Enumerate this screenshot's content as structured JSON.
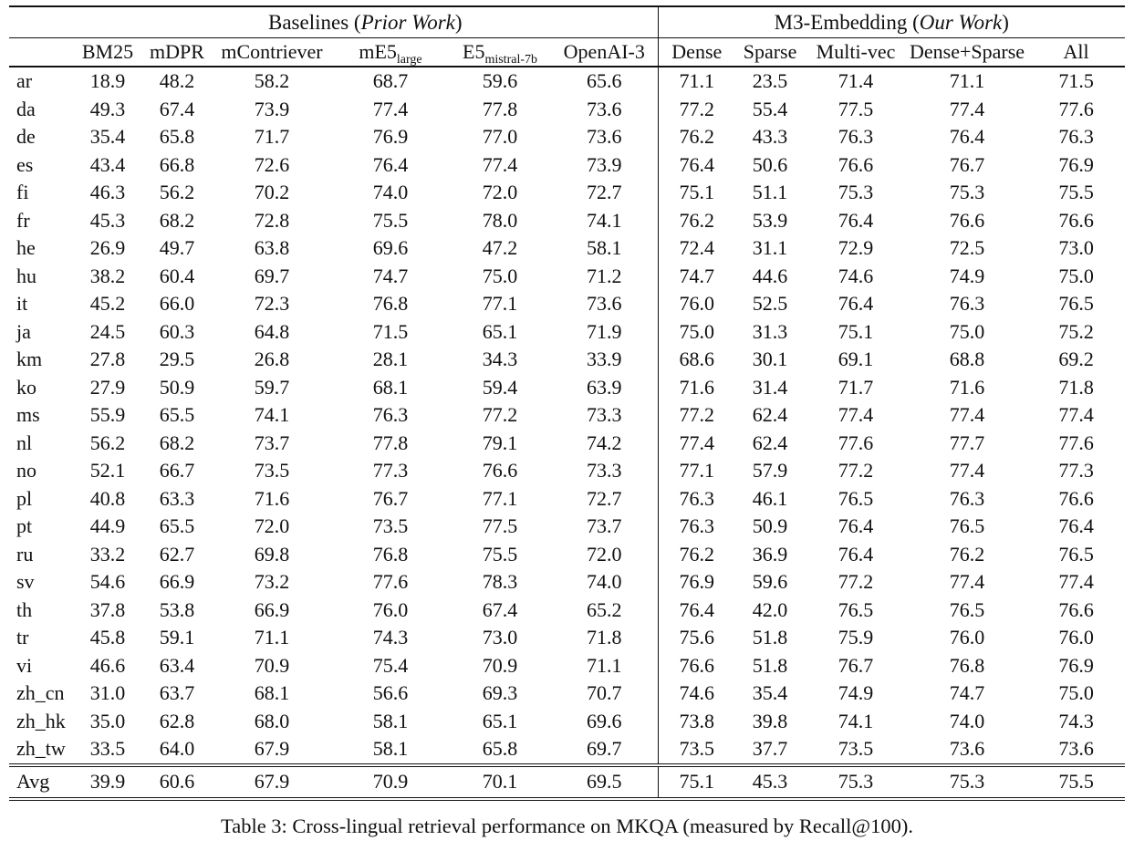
{
  "page": {
    "background_color": "#ffffff",
    "text_color": "#111111"
  },
  "table": {
    "group_headers": {
      "baselines": {
        "prefix": "Baselines (",
        "italic": "Prior Work",
        "suffix": ")"
      },
      "m3": {
        "prefix": "M3-Embedding (",
        "italic": "Our Work",
        "suffix": ")"
      }
    },
    "columns": [
      {
        "label": "BM25"
      },
      {
        "label": "mDPR"
      },
      {
        "label": "mContriever"
      },
      {
        "label": "mE5",
        "sub": "large"
      },
      {
        "label": "E5",
        "sub": "mistral-7b"
      },
      {
        "label": "OpenAI-3"
      },
      {
        "label": "Dense"
      },
      {
        "label": "Sparse"
      },
      {
        "label": "Multi-vec"
      },
      {
        "label": "Dense+Sparse"
      },
      {
        "label": "All"
      }
    ],
    "rows": [
      {
        "lang": "ar",
        "values": [
          "18.9",
          "48.2",
          "58.2",
          "68.7",
          "59.6",
          "65.6",
          "71.1",
          "23.5",
          "71.4",
          "71.1",
          "71.5"
        ],
        "bold": [
          10
        ]
      },
      {
        "lang": "da",
        "values": [
          "49.3",
          "67.4",
          "73.9",
          "77.4",
          "77.8",
          "73.6",
          "77.2",
          "55.4",
          "77.5",
          "77.4",
          "77.6"
        ],
        "bold": [
          4
        ]
      },
      {
        "lang": "de",
        "values": [
          "35.4",
          "65.8",
          "71.7",
          "76.9",
          "77.0",
          "73.6",
          "76.2",
          "43.3",
          "76.3",
          "76.4",
          "76.3"
        ],
        "bold": [
          4
        ]
      },
      {
        "lang": "es",
        "values": [
          "43.4",
          "66.8",
          "72.6",
          "76.4",
          "77.4",
          "73.9",
          "76.4",
          "50.6",
          "76.6",
          "76.7",
          "76.9"
        ],
        "bold": [
          4
        ]
      },
      {
        "lang": "fi",
        "values": [
          "46.3",
          "56.2",
          "70.2",
          "74.0",
          "72.0",
          "72.7",
          "75.1",
          "51.1",
          "75.3",
          "75.3",
          "75.5"
        ],
        "bold": [
          10
        ]
      },
      {
        "lang": "fr",
        "values": [
          "45.3",
          "68.2",
          "72.8",
          "75.5",
          "78.0",
          "74.1",
          "76.2",
          "53.9",
          "76.4",
          "76.6",
          "76.6"
        ],
        "bold": [
          4
        ]
      },
      {
        "lang": "he",
        "values": [
          "26.9",
          "49.7",
          "63.8",
          "69.6",
          "47.2",
          "58.1",
          "72.4",
          "31.1",
          "72.9",
          "72.5",
          "73.0"
        ],
        "bold": [
          10
        ]
      },
      {
        "lang": "hu",
        "values": [
          "38.2",
          "60.4",
          "69.7",
          "74.7",
          "75.0",
          "71.2",
          "74.7",
          "44.6",
          "74.6",
          "74.9",
          "75.0"
        ],
        "bold": [
          4,
          10
        ]
      },
      {
        "lang": "it",
        "values": [
          "45.2",
          "66.0",
          "72.3",
          "76.8",
          "77.1",
          "73.6",
          "76.0",
          "52.5",
          "76.4",
          "76.3",
          "76.5"
        ],
        "bold": [
          4
        ]
      },
      {
        "lang": "ja",
        "values": [
          "24.5",
          "60.3",
          "64.8",
          "71.5",
          "65.1",
          "71.9",
          "75.0",
          "31.3",
          "75.1",
          "75.0",
          "75.2"
        ],
        "bold": [
          10
        ]
      },
      {
        "lang": "km",
        "values": [
          "27.8",
          "29.5",
          "26.8",
          "28.1",
          "34.3",
          "33.9",
          "68.6",
          "30.1",
          "69.1",
          "68.8",
          "69.2"
        ],
        "bold": [
          10
        ]
      },
      {
        "lang": "ko",
        "values": [
          "27.9",
          "50.9",
          "59.7",
          "68.1",
          "59.4",
          "63.9",
          "71.6",
          "31.4",
          "71.7",
          "71.6",
          "71.8"
        ],
        "bold": [
          10
        ]
      },
      {
        "lang": "ms",
        "values": [
          "55.9",
          "65.5",
          "74.1",
          "76.3",
          "77.2",
          "73.3",
          "77.2",
          "62.4",
          "77.4",
          "77.4",
          "77.4"
        ],
        "bold": [
          8,
          9,
          10
        ]
      },
      {
        "lang": "nl",
        "values": [
          "56.2",
          "68.2",
          "73.7",
          "77.8",
          "79.1",
          "74.2",
          "77.4",
          "62.4",
          "77.6",
          "77.7",
          "77.6"
        ],
        "bold": [
          4
        ]
      },
      {
        "lang": "no",
        "values": [
          "52.1",
          "66.7",
          "73.5",
          "77.3",
          "76.6",
          "73.3",
          "77.1",
          "57.9",
          "77.2",
          "77.4",
          "77.3"
        ],
        "bold": [
          9
        ]
      },
      {
        "lang": "pl",
        "values": [
          "40.8",
          "63.3",
          "71.6",
          "76.7",
          "77.1",
          "72.7",
          "76.3",
          "46.1",
          "76.5",
          "76.3",
          "76.6"
        ],
        "bold": [
          4
        ]
      },
      {
        "lang": "pt",
        "values": [
          "44.9",
          "65.5",
          "72.0",
          "73.5",
          "77.5",
          "73.7",
          "76.3",
          "50.9",
          "76.4",
          "76.5",
          "76.4"
        ],
        "bold": [
          4
        ]
      },
      {
        "lang": "ru",
        "values": [
          "33.2",
          "62.7",
          "69.8",
          "76.8",
          "75.5",
          "72.0",
          "76.2",
          "36.9",
          "76.4",
          "76.2",
          "76.5"
        ],
        "bold": [
          3
        ]
      },
      {
        "lang": "sv",
        "values": [
          "54.6",
          "66.9",
          "73.2",
          "77.6",
          "78.3",
          "74.0",
          "76.9",
          "59.6",
          "77.2",
          "77.4",
          "77.4"
        ],
        "bold": [
          4
        ]
      },
      {
        "lang": "th",
        "values": [
          "37.8",
          "53.8",
          "66.9",
          "76.0",
          "67.4",
          "65.2",
          "76.4",
          "42.0",
          "76.5",
          "76.5",
          "76.6"
        ],
        "bold": [
          10
        ]
      },
      {
        "lang": "tr",
        "values": [
          "45.8",
          "59.1",
          "71.1",
          "74.3",
          "73.0",
          "71.8",
          "75.6",
          "51.8",
          "75.9",
          "76.0",
          "76.0"
        ],
        "bold": [
          9,
          10
        ]
      },
      {
        "lang": "vi",
        "values": [
          "46.6",
          "63.4",
          "70.9",
          "75.4",
          "70.9",
          "71.1",
          "76.6",
          "51.8",
          "76.7",
          "76.8",
          "76.9"
        ],
        "bold": [
          10
        ]
      },
      {
        "lang": "zh_cn",
        "values": [
          "31.0",
          "63.7",
          "68.1",
          "56.6",
          "69.3",
          "70.7",
          "74.6",
          "35.4",
          "74.9",
          "74.7",
          "75.0"
        ],
        "bold": [
          10
        ]
      },
      {
        "lang": "zh_hk",
        "values": [
          "35.0",
          "62.8",
          "68.0",
          "58.1",
          "65.1",
          "69.6",
          "73.8",
          "39.8",
          "74.1",
          "74.0",
          "74.3"
        ],
        "bold": [
          10
        ]
      },
      {
        "lang": "zh_tw",
        "values": [
          "33.5",
          "64.0",
          "67.9",
          "58.1",
          "65.8",
          "69.7",
          "73.5",
          "37.7",
          "73.5",
          "73.6",
          "73.6"
        ],
        "bold": [
          9,
          10
        ]
      }
    ],
    "avg_row": {
      "lang": "Avg",
      "values": [
        "39.9",
        "60.6",
        "67.9",
        "70.9",
        "70.1",
        "69.5",
        "75.1",
        "45.3",
        "75.3",
        "75.3",
        "75.5"
      ],
      "bold": [
        10
      ]
    },
    "caption": "Table 3: Cross-lingual retrieval performance on MKQA (measured by Recall@100)."
  }
}
